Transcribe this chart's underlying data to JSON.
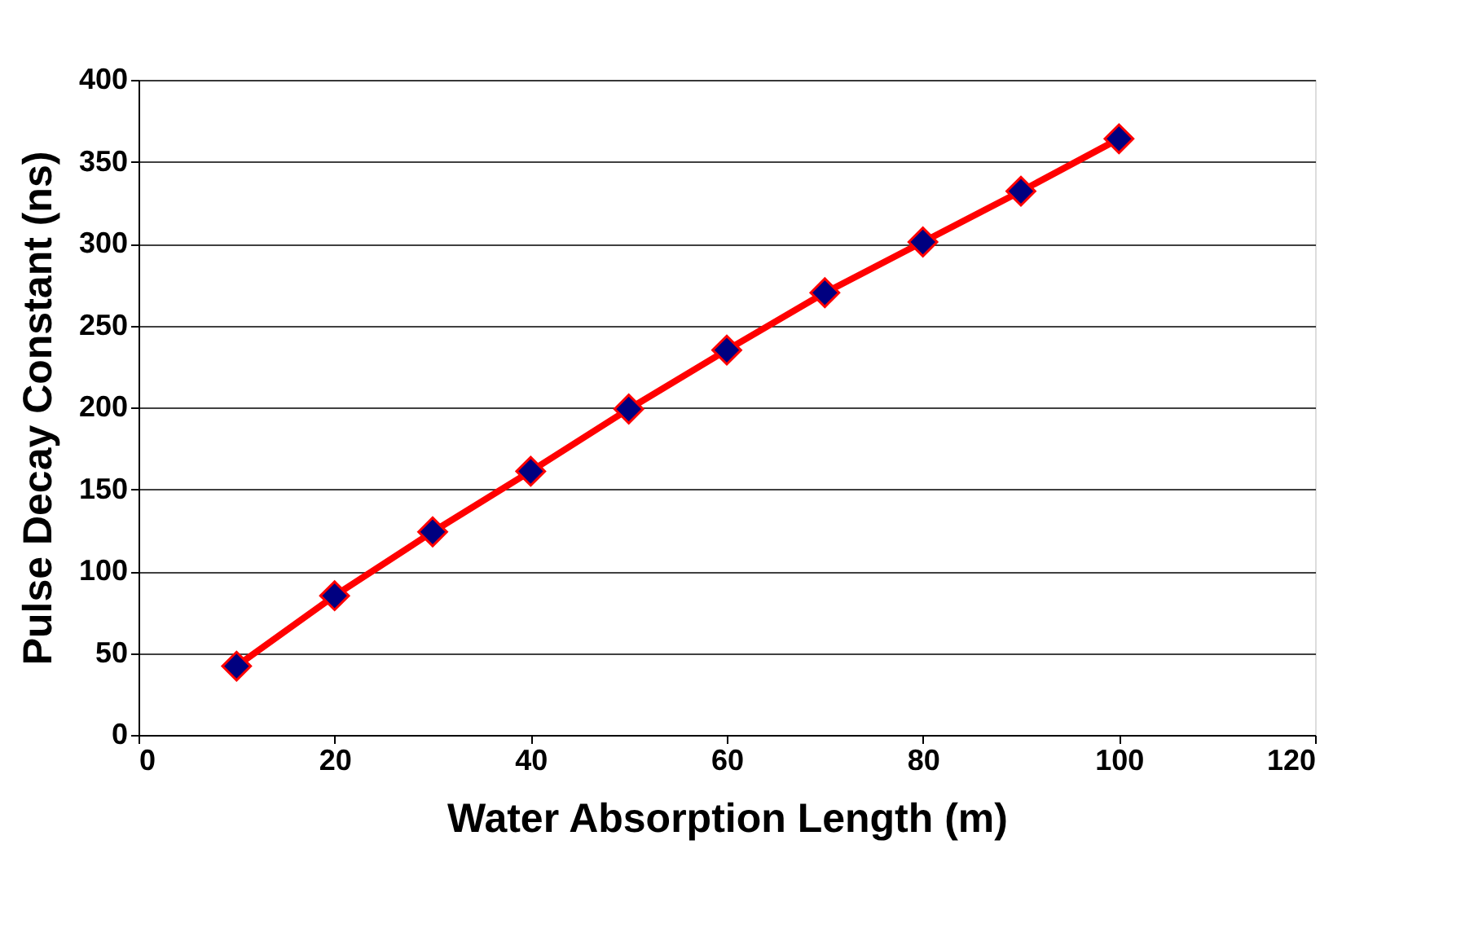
{
  "chart_data": {
    "type": "line",
    "xlabel": "Water Absorption Length (m)",
    "ylabel": "Pulse Decay Constant (ns)",
    "x": [
      10,
      20,
      30,
      40,
      50,
      60,
      70,
      80,
      90,
      100
    ],
    "series": [
      {
        "color": "#ff0000",
        "values": [
          42,
          85,
          124,
          161,
          199,
          235,
          270,
          301,
          332,
          364
        ]
      }
    ],
    "xlim": [
      0,
      120
    ],
    "xticks": [
      0,
      20,
      40,
      60,
      80,
      100,
      120
    ],
    "ylim": [
      0,
      400
    ],
    "yticks": [
      0,
      50,
      100,
      150,
      200,
      250,
      300,
      350,
      400
    ],
    "grid": "y",
    "marker": "diamond",
    "line_style": "solid"
  }
}
